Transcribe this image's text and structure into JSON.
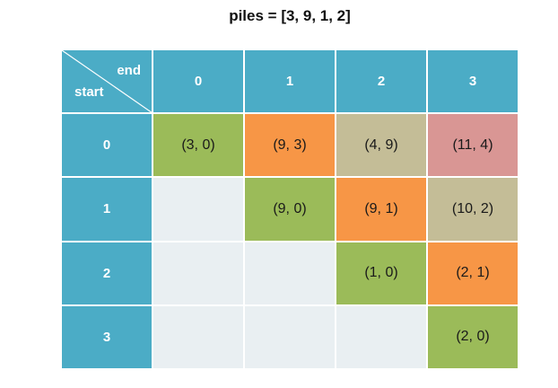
{
  "title": "piles = [3, 9, 1, 2]",
  "corner": {
    "end_label": "end",
    "start_label": "start"
  },
  "column_headers": [
    "0",
    "1",
    "2",
    "3"
  ],
  "row_headers": [
    "0",
    "1",
    "2",
    "3"
  ],
  "colors": {
    "header": "#4bacc6",
    "green": "#9bbb59",
    "orange": "#f79646",
    "tan": "#c4bd97",
    "pink": "#d99694",
    "empty": "#e9eff2"
  },
  "cells": [
    [
      "(3, 0)",
      "(9, 3)",
      "(4, 9)",
      "(11, 4)"
    ],
    [
      "",
      "(9, 0)",
      "(9, 1)",
      "(10, 2)"
    ],
    [
      "",
      "",
      "(1, 0)",
      "(2, 1)"
    ],
    [
      "",
      "",
      "",
      "(2, 0)"
    ]
  ]
}
